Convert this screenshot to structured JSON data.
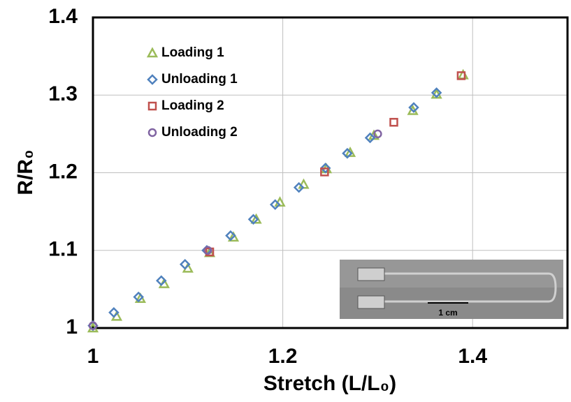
{
  "chart_data": {
    "type": "scatter",
    "x_label": "Stretch (L/L₀)",
    "y_label": "R/R₀",
    "xlim": [
      1,
      1.5
    ],
    "ylim": [
      1,
      1.4
    ],
    "xticks": [
      1,
      1.2,
      1.4
    ],
    "yticks": [
      1,
      1.1,
      1.2,
      1.3,
      1.4
    ],
    "grid": true,
    "legend": "upper-left",
    "inset_label": "1 cm",
    "series": [
      {
        "name": "Loading 1",
        "color": "#9bbb59",
        "marker": "triangle",
        "x": [
          1.0,
          1.025,
          1.05,
          1.075,
          1.1,
          1.123,
          1.148,
          1.172,
          1.197,
          1.222,
          1.246,
          1.271,
          1.296,
          1.337,
          1.362,
          1.39
        ],
        "values": [
          1.0,
          1.015,
          1.038,
          1.057,
          1.077,
          1.097,
          1.117,
          1.14,
          1.162,
          1.185,
          1.205,
          1.226,
          1.248,
          1.28,
          1.301,
          1.326
        ]
      },
      {
        "name": "Unloading 1",
        "color": "#4f81bd",
        "marker": "diamond",
        "x": [
          1.0,
          1.022,
          1.048,
          1.072,
          1.097,
          1.12,
          1.145,
          1.169,
          1.192,
          1.217,
          1.245,
          1.268,
          1.292,
          1.338,
          1.362
        ],
        "values": [
          1.003,
          1.02,
          1.04,
          1.061,
          1.082,
          1.1,
          1.119,
          1.14,
          1.159,
          1.181,
          1.206,
          1.225,
          1.245,
          1.284,
          1.303
        ]
      },
      {
        "name": "Loading 2",
        "color": "#c0504d",
        "marker": "square",
        "x": [
          1.123,
          1.244,
          1.317,
          1.388
        ],
        "values": [
          1.098,
          1.201,
          1.265,
          1.325
        ]
      },
      {
        "name": "Unloading 2",
        "color": "#8064a2",
        "marker": "circle",
        "x": [
          1.0,
          1.121,
          1.3
        ],
        "values": [
          1.003,
          1.1,
          1.25
        ]
      }
    ]
  }
}
